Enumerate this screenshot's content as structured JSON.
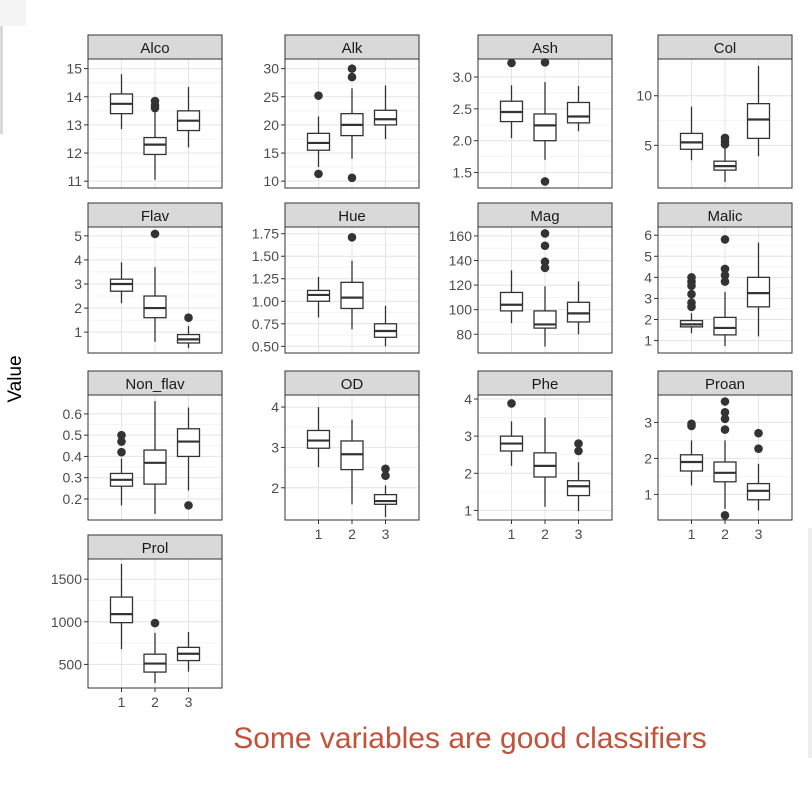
{
  "ylabel": "Value",
  "caption": "Some variables are good classifiers",
  "chart_data": {
    "type": "boxplot",
    "facet_layout": "4 columns, free y scales, shared x",
    "categories": [
      "1",
      "2",
      "3"
    ],
    "facets": [
      {
        "name": "Alco",
        "yticks": [
          11,
          12,
          13,
          14,
          15
        ],
        "ylim": [
          10.9,
          15.2
        ],
        "show_x": false,
        "boxes": [
          {
            "q1": 13.4,
            "med": 13.75,
            "q3": 14.1,
            "lo": 12.85,
            "hi": 14.8,
            "out": []
          },
          {
            "q1": 11.95,
            "med": 12.3,
            "q3": 12.55,
            "lo": 11.05,
            "hi": 13.5,
            "out": [
              13.6,
              13.7,
              13.85
            ]
          },
          {
            "q1": 12.8,
            "med": 13.15,
            "q3": 13.5,
            "lo": 12.2,
            "hi": 14.35,
            "out": []
          }
        ]
      },
      {
        "name": "Alk",
        "yticks": [
          10,
          15,
          20,
          25,
          30
        ],
        "ylim": [
          9.5,
          31
        ],
        "show_x": false,
        "boxes": [
          {
            "q1": 15.5,
            "med": 16.8,
            "q3": 18.5,
            "lo": 12.5,
            "hi": 21.5,
            "out": [
              11.3,
              25.2
            ]
          },
          {
            "q1": 18.1,
            "med": 20.0,
            "q3": 22.0,
            "lo": 14.0,
            "hi": 26.5,
            "out": [
              10.6,
              28.5,
              30.0
            ]
          },
          {
            "q1": 20.0,
            "med": 21.0,
            "q3": 22.6,
            "lo": 17.5,
            "hi": 27.0,
            "out": []
          }
        ]
      },
      {
        "name": "Ash",
        "yticks": [
          "1.5",
          "2.0",
          "2.5",
          "3.0"
        ],
        "ylim": [
          1.32,
          3.22
        ],
        "show_x": false,
        "boxes": [
          {
            "q1": 2.3,
            "med": 2.45,
            "q3": 2.62,
            "lo": 2.04,
            "hi": 2.87,
            "out": [
              3.22
            ]
          },
          {
            "q1": 2.0,
            "med": 2.24,
            "q3": 2.42,
            "lo": 1.7,
            "hi": 2.92,
            "out": [
              1.36,
              3.23
            ]
          },
          {
            "q1": 2.28,
            "med": 2.38,
            "q3": 2.6,
            "lo": 2.15,
            "hi": 2.86,
            "out": []
          }
        ]
      },
      {
        "name": "Col",
        "yticks": [
          5,
          10
        ],
        "ylim": [
          1.1,
          13.3
        ],
        "show_x": false,
        "boxes": [
          {
            "q1": 4.6,
            "med": 5.3,
            "q3": 6.2,
            "lo": 3.5,
            "hi": 8.9,
            "out": []
          },
          {
            "q1": 2.5,
            "med": 2.9,
            "q3": 3.4,
            "lo": 1.3,
            "hi": 4.7,
            "out": [
              5.1,
              5.4,
              5.75
            ]
          },
          {
            "q1": 5.7,
            "med": 7.6,
            "q3": 9.2,
            "lo": 3.9,
            "hi": 13.0,
            "out": []
          }
        ]
      },
      {
        "name": "Flav",
        "yticks": [
          1,
          2,
          3,
          4,
          5
        ],
        "ylim": [
          0.3,
          5.2
        ],
        "show_x": false,
        "boxes": [
          {
            "q1": 2.7,
            "med": 3.0,
            "q3": 3.2,
            "lo": 2.2,
            "hi": 3.9,
            "out": []
          },
          {
            "q1": 1.6,
            "med": 2.0,
            "q3": 2.5,
            "lo": 0.6,
            "hi": 3.7,
            "out": [
              5.08
            ]
          },
          {
            "q1": 0.55,
            "med": 0.7,
            "q3": 0.9,
            "lo": 0.34,
            "hi": 1.25,
            "out": [
              1.6
            ]
          }
        ]
      },
      {
        "name": "Hue",
        "yticks": [
          "0.50",
          "0.75",
          "1.00",
          "1.25",
          "1.50",
          "1.75"
        ],
        "ylim": [
          0.47,
          1.78
        ],
        "show_x": false,
        "boxes": [
          {
            "q1": 1.0,
            "med": 1.07,
            "q3": 1.12,
            "lo": 0.82,
            "hi": 1.27,
            "out": []
          },
          {
            "q1": 0.92,
            "med": 1.04,
            "q3": 1.21,
            "lo": 0.69,
            "hi": 1.45,
            "out": [
              1.71
            ]
          },
          {
            "q1": 0.6,
            "med": 0.67,
            "q3": 0.75,
            "lo": 0.5,
            "hi": 0.95,
            "out": []
          }
        ]
      },
      {
        "name": "Mag",
        "yticks": [
          80,
          100,
          120,
          140,
          160
        ],
        "ylim": [
          68,
          164
        ],
        "show_x": false,
        "boxes": [
          {
            "q1": 99,
            "med": 104,
            "q3": 114,
            "lo": 89,
            "hi": 132,
            "out": []
          },
          {
            "q1": 85,
            "med": 88,
            "q3": 99,
            "lo": 70,
            "hi": 119,
            "out": [
              134,
              139,
              152,
              162
            ]
          },
          {
            "q1": 90,
            "med": 97,
            "q3": 106,
            "lo": 80,
            "hi": 123,
            "out": []
          }
        ]
      },
      {
        "name": "Malic",
        "yticks": [
          1,
          2,
          3,
          4,
          5,
          6
        ],
        "ylim": [
          0.6,
          6.2
        ],
        "show_x": false,
        "boxes": [
          {
            "q1": 1.65,
            "med": 1.77,
            "q3": 1.95,
            "lo": 1.35,
            "hi": 2.3,
            "out": [
              2.6,
              2.8,
              3.2,
              3.6,
              3.8,
              4.0
            ]
          },
          {
            "q1": 1.27,
            "med": 1.6,
            "q3": 2.1,
            "lo": 0.74,
            "hi": 3.3,
            "out": [
              3.8,
              4.1,
              4.4,
              5.8
            ]
          },
          {
            "q1": 2.6,
            "med": 3.25,
            "q3": 4.0,
            "lo": 1.2,
            "hi": 5.65,
            "out": []
          }
        ]
      },
      {
        "name": "Non_flav",
        "yticks": [
          "0.2",
          "0.3",
          "0.4",
          "0.5",
          "0.6"
        ],
        "ylim": [
          0.12,
          0.67
        ],
        "show_x": false,
        "boxes": [
          {
            "q1": 0.26,
            "med": 0.29,
            "q3": 0.32,
            "lo": 0.17,
            "hi": 0.39,
            "out": [
              0.42,
              0.47,
              0.5
            ]
          },
          {
            "q1": 0.27,
            "med": 0.37,
            "q3": 0.43,
            "lo": 0.13,
            "hi": 0.66,
            "out": []
          },
          {
            "q1": 0.4,
            "med": 0.47,
            "q3": 0.53,
            "lo": 0.24,
            "hi": 0.63,
            "out": [
              0.17
            ]
          }
        ]
      },
      {
        "name": "OD",
        "yticks": [
          2,
          3,
          4
        ],
        "ylim": [
          1.3,
          4.2
        ],
        "show_x": true,
        "boxes": [
          {
            "q1": 2.98,
            "med": 3.17,
            "q3": 3.42,
            "lo": 2.51,
            "hi": 4.0,
            "out": []
          },
          {
            "q1": 2.45,
            "med": 2.83,
            "q3": 3.16,
            "lo": 1.59,
            "hi": 3.69,
            "out": []
          },
          {
            "q1": 1.59,
            "med": 1.67,
            "q3": 1.83,
            "lo": 1.27,
            "hi": 2.06,
            "out": [
              2.3,
              2.47
            ]
          }
        ]
      },
      {
        "name": "Phe",
        "yticks": [
          1,
          2,
          3,
          4
        ],
        "ylim": [
          0.85,
          4.0
        ],
        "show_x": true,
        "boxes": [
          {
            "q1": 2.6,
            "med": 2.8,
            "q3": 3.0,
            "lo": 2.2,
            "hi": 3.4,
            "out": [
              3.88
            ]
          },
          {
            "q1": 1.9,
            "med": 2.2,
            "q3": 2.55,
            "lo": 1.1,
            "hi": 3.5,
            "out": []
          },
          {
            "q1": 1.4,
            "med": 1.65,
            "q3": 1.8,
            "lo": 0.98,
            "hi": 2.3,
            "out": [
              2.6,
              2.8
            ]
          }
        ]
      },
      {
        "name": "Proan",
        "yticks": [
          1,
          2,
          3
        ],
        "ylim": [
          0.4,
          3.65
        ],
        "show_x": true,
        "boxes": [
          {
            "q1": 1.65,
            "med": 1.9,
            "q3": 2.1,
            "lo": 1.25,
            "hi": 2.5,
            "out": [
              2.9,
              2.96
            ]
          },
          {
            "q1": 1.35,
            "med": 1.6,
            "q3": 1.9,
            "lo": 0.6,
            "hi": 2.5,
            "out": [
              0.42,
              2.8,
              3.1,
              3.28,
              3.58
            ]
          },
          {
            "q1": 0.85,
            "med": 1.1,
            "q3": 1.3,
            "lo": 0.55,
            "hi": 1.85,
            "out": [
              2.27,
              2.7
            ]
          }
        ]
      },
      {
        "name": "Prol",
        "yticks": [
          500,
          1000,
          1500
        ],
        "ylim": [
          270,
          1690
        ],
        "show_x": true,
        "boxes": [
          {
            "q1": 990,
            "med": 1090,
            "q3": 1290,
            "lo": 680,
            "hi": 1680,
            "out": []
          },
          {
            "q1": 410,
            "med": 510,
            "q3": 620,
            "lo": 280,
            "hi": 870,
            "out": [
              985
            ]
          },
          {
            "q1": 545,
            "med": 625,
            "q3": 700,
            "lo": 415,
            "hi": 880,
            "out": []
          }
        ]
      }
    ]
  }
}
